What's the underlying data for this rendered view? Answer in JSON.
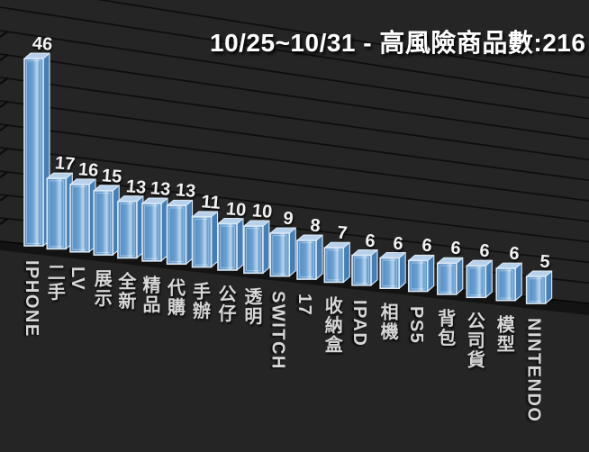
{
  "title": "10/25~10/31 - 高風險商品數:216",
  "chart_data": {
    "type": "bar",
    "style": "3d-perspective-column",
    "title": "10/25~10/31 - 高風險商品數:216",
    "categories": [
      "IPHONE",
      "二手",
      "LV",
      "展示",
      "全新",
      "精品",
      "代購",
      "手辦",
      "公仔",
      "透明",
      "SWITCH",
      "17",
      "收納盒",
      "IPAD",
      "相機",
      "PS5",
      "背包",
      "公司貨",
      "模型",
      "NINTENDO"
    ],
    "values": [
      46,
      17,
      16,
      15,
      13,
      13,
      13,
      11,
      10,
      10,
      9,
      8,
      7,
      6,
      6,
      6,
      6,
      6,
      6,
      5
    ],
    "xlabel": "",
    "ylabel": "",
    "ylim": [
      0,
      50
    ],
    "grid": true,
    "legend": false,
    "data_labels": true,
    "colors": {
      "background": "#252525",
      "gridline": "#0e0e0e",
      "floor": "#131313",
      "floor_edge": "#060606",
      "bar_front_dark": "#4f89c0",
      "bar_front_mid": "#6ba0d2",
      "bar_front_highlight": "#b9d6ee",
      "bar_side": "#477fb5",
      "bar_top": "#b7d1ea",
      "bar_edge": "#dce9f5",
      "value_label": "#f2f2f2",
      "category_label": "#d6d6d6",
      "title_color": "#ffffff"
    }
  }
}
